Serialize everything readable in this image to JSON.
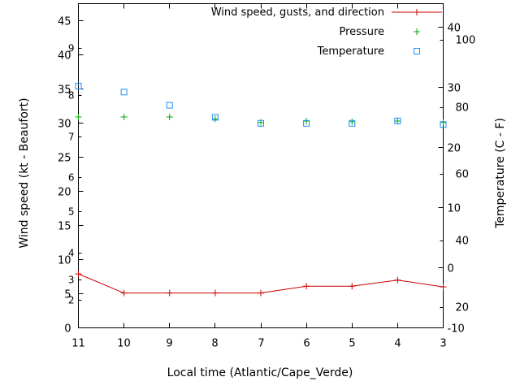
{
  "chart_data": {
    "type": "line",
    "title": "",
    "legend": {
      "position": "inside-top-right",
      "entries": [
        "Wind speed, gusts, and direction",
        "Pressure",
        "Temperature"
      ]
    },
    "x_axis": {
      "label": "Local time (Atlantic/Cape_Verde)",
      "categories": [
        "11",
        "10",
        "9",
        "8",
        "7",
        "6",
        "5",
        "4",
        "3"
      ]
    },
    "left_axis": {
      "label": "Wind speed (kt - Beaufort)",
      "range": [
        0,
        47.5
      ],
      "ticks_kt": [
        0,
        5,
        10,
        15,
        20,
        25,
        30,
        35,
        40,
        45
      ],
      "beaufort_ticks": [
        {
          "bf": "2",
          "kt": 4
        },
        {
          "bf": "3",
          "kt": 7
        },
        {
          "bf": "4",
          "kt": 11
        },
        {
          "bf": "5",
          "kt": 17
        },
        {
          "bf": "6",
          "kt": 22
        },
        {
          "bf": "7",
          "kt": 28
        },
        {
          "bf": "8",
          "kt": 34
        },
        {
          "bf": "9",
          "kt": 41
        }
      ]
    },
    "right_axis": {
      "label": "Temperature (C - F)",
      "range_c": [
        -10,
        43.9
      ],
      "ticks_c": [
        -10,
        0,
        10,
        20,
        30,
        40
      ],
      "ticks_f": [
        20,
        40,
        60,
        80,
        100
      ]
    },
    "series": [
      {
        "name": "Wind speed, gusts, and direction",
        "color": "#cc0000",
        "marker": "plus",
        "line": true,
        "axis": "left",
        "values": [
          7.9,
          5.1,
          5.1,
          5.1,
          5.1,
          6.1,
          6.1,
          7.0,
          6.0
        ]
      },
      {
        "name": "Pressure",
        "color": "#00a800",
        "marker": "plus",
        "line": false,
        "axis": "left",
        "values": [
          30.9,
          30.9,
          30.9,
          30.6,
          30.1,
          30.3,
          30.2,
          30.3,
          30.1
        ]
      },
      {
        "name": "Temperature",
        "color": "#1e90ff",
        "marker": "square",
        "line": false,
        "axis": "right",
        "values": [
          30.2,
          29.2,
          27.0,
          25.0,
          24.0,
          24.0,
          24.0,
          24.4,
          23.8
        ]
      }
    ]
  }
}
